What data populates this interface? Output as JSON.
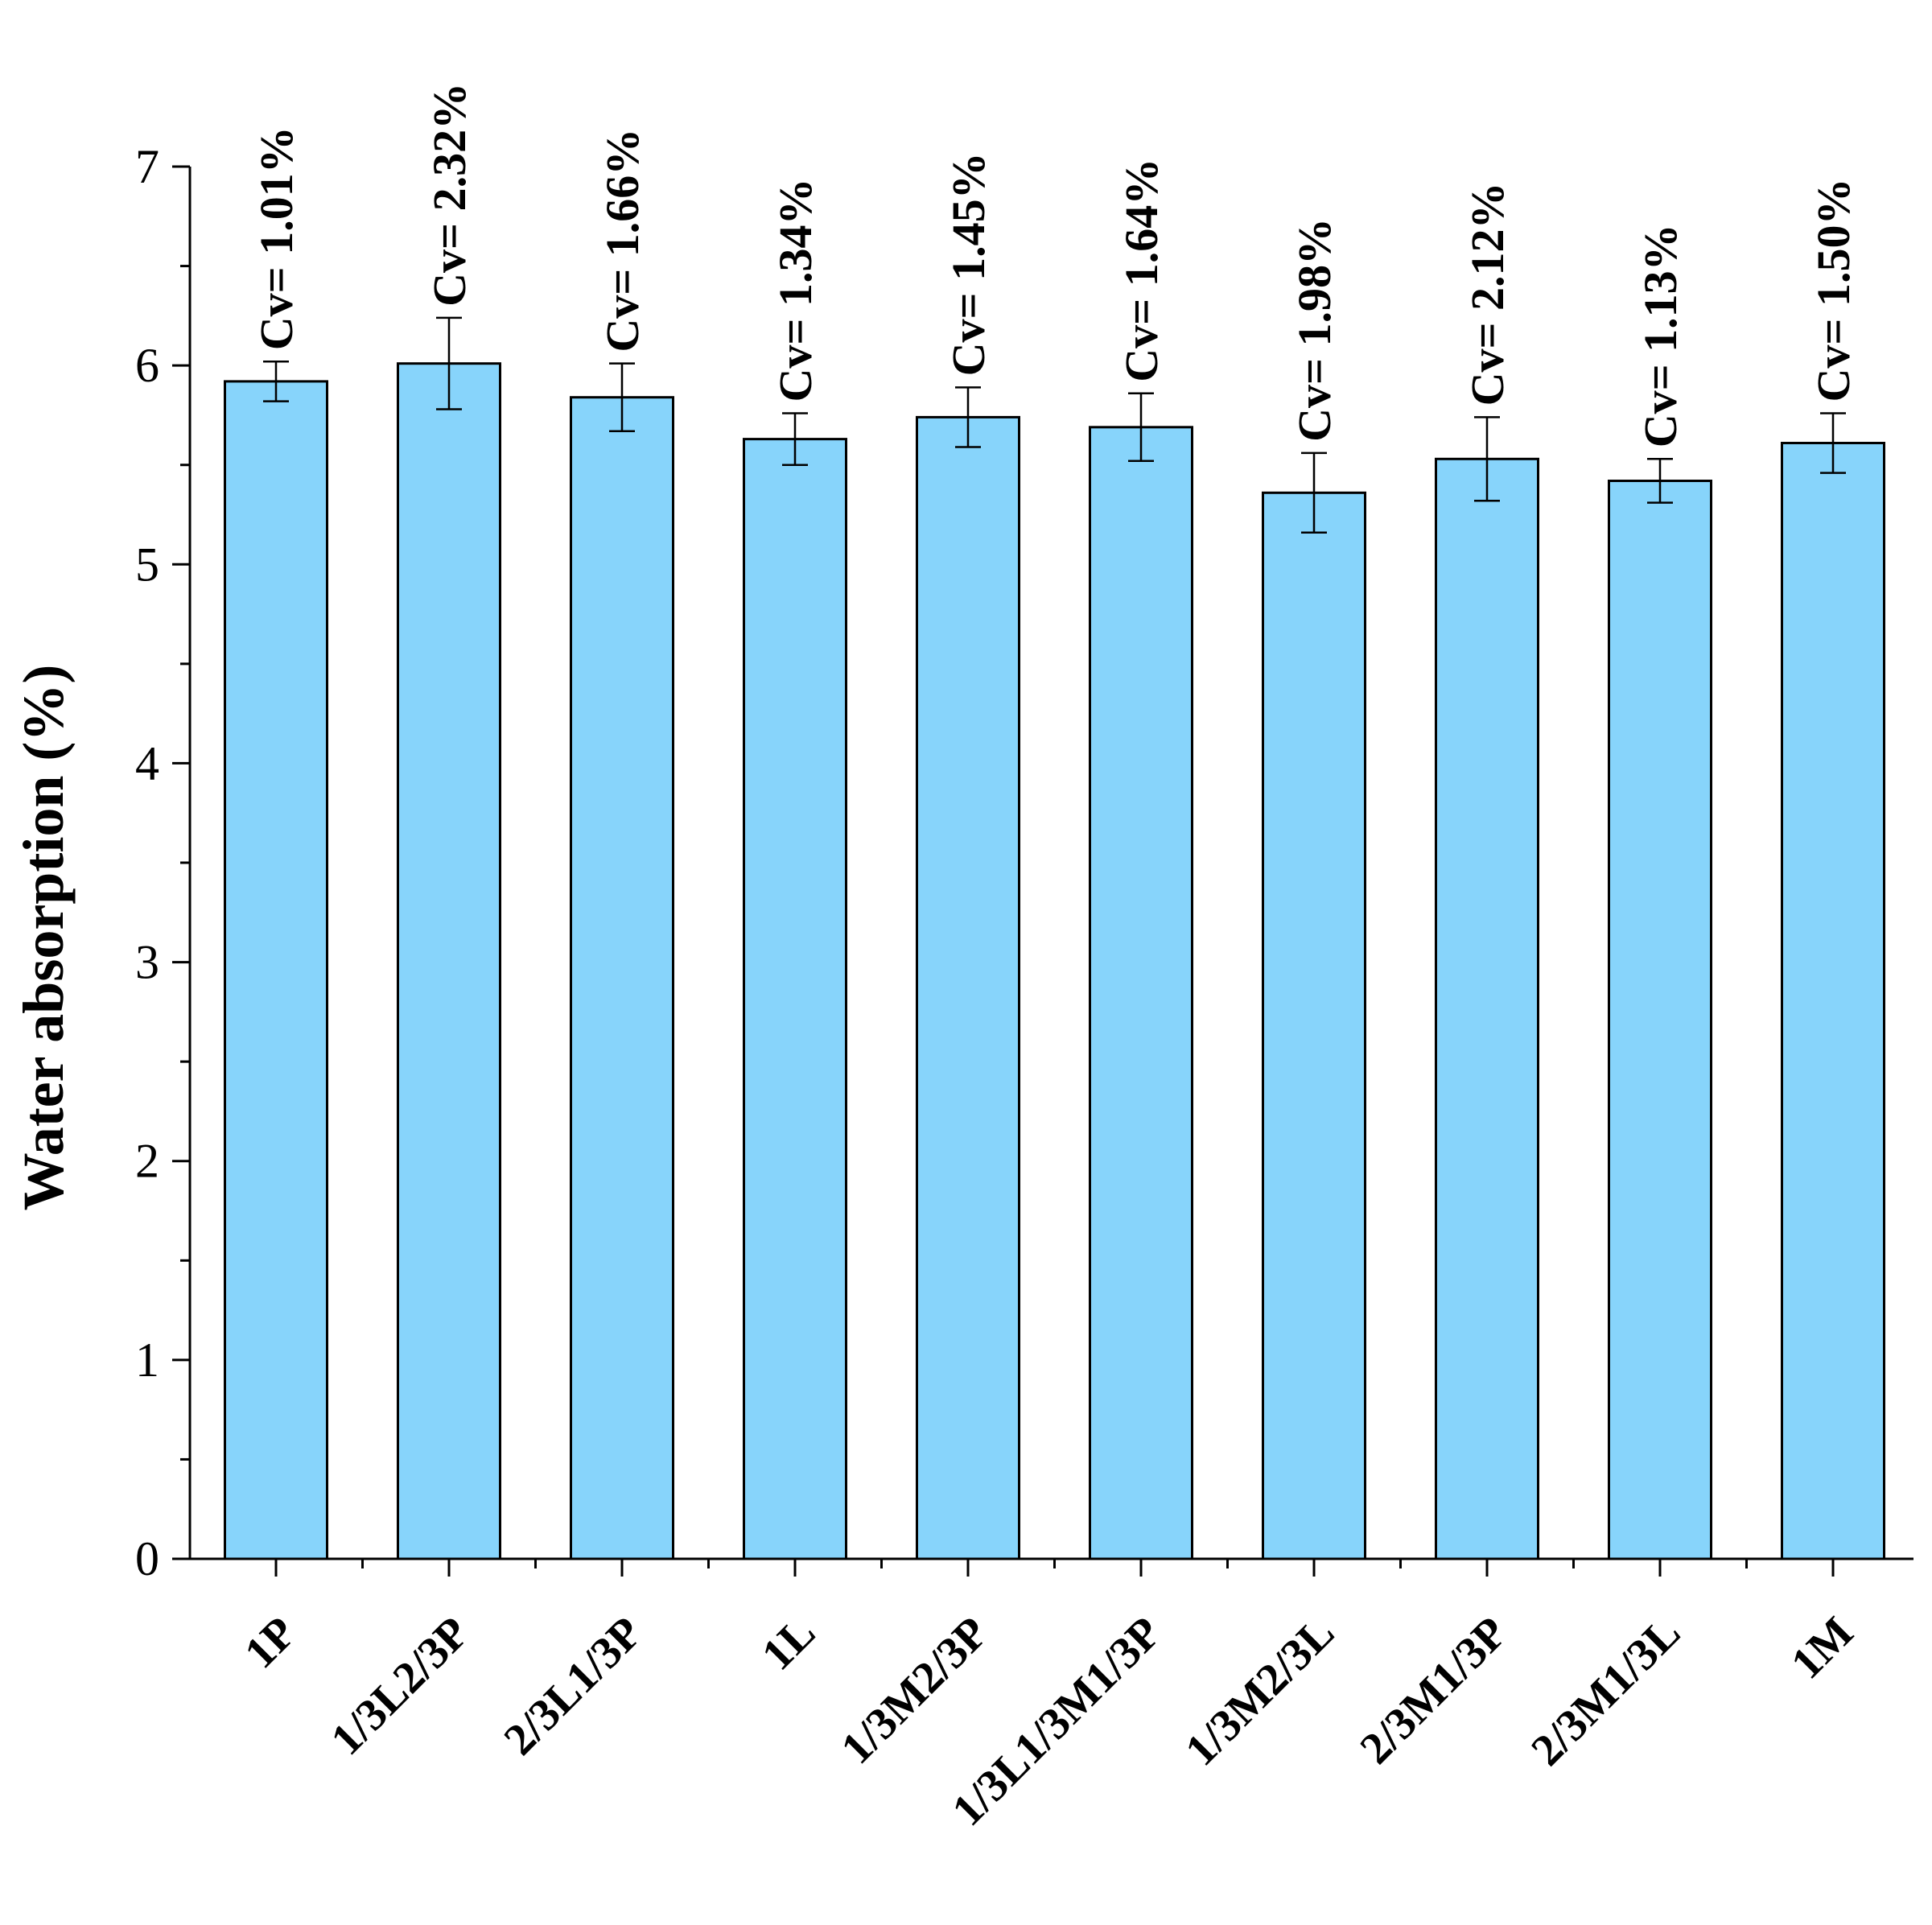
{
  "chart_data": {
    "type": "bar",
    "title": "",
    "xlabel": "",
    "ylabel": "Water absorption (%)",
    "ylim": [
      0,
      7
    ],
    "yticks": [
      0,
      1,
      2,
      3,
      4,
      5,
      6,
      7
    ],
    "grid": false,
    "categories": [
      "1P",
      "1/3L2/3P",
      "2/3L1/3P",
      "1L",
      "1/3M2/3P",
      "1/3L1/3M1/3P",
      "1/3M2/3L",
      "2/3M1/3P",
      "2/3M1/3L",
      "1M"
    ],
    "values": [
      5.92,
      6.01,
      5.84,
      5.63,
      5.74,
      5.69,
      5.36,
      5.53,
      5.42,
      5.61
    ],
    "errors": [
      0.1,
      0.23,
      0.17,
      0.13,
      0.15,
      0.17,
      0.2,
      0.21,
      0.11,
      0.15
    ],
    "annotations": [
      "Cv= 1.01%",
      "Cv= 2.32%",
      "Cv= 1.66%",
      "Cv= 1.34%",
      "Cv= 1.45%",
      "Cv= 1.64%",
      "Cv= 1.98%",
      "Cv= 2.12%",
      "Cv= 1.13%",
      "Cv= 1.50%"
    ],
    "bar_color": "#87d4fb",
    "edge_color": "#000000"
  }
}
